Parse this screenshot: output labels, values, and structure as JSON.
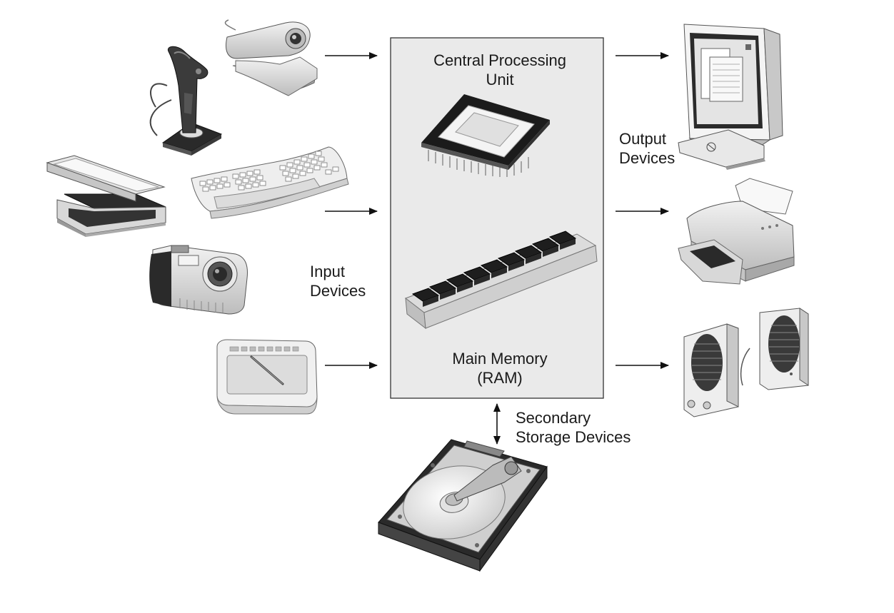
{
  "diagram": {
    "cpu_label": [
      "Central Processing",
      "Unit"
    ],
    "memory_label": [
      "Main Memory",
      "(RAM)"
    ],
    "input_label": [
      "Input",
      "Devices"
    ],
    "output_label": [
      "Output",
      "Devices"
    ],
    "storage_label": [
      "Secondary",
      "Storage Devices"
    ],
    "input_devices": [
      "joystick",
      "webcam",
      "scanner",
      "keyboard",
      "digital camera",
      "graphics tablet"
    ],
    "output_devices": [
      "monitor",
      "printer",
      "speakers"
    ],
    "storage_devices": [
      "hard disk drive"
    ]
  }
}
